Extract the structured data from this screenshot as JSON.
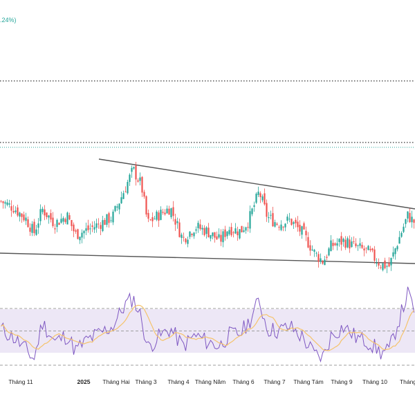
{
  "header": {
    "change_text": ".24%)"
  },
  "colors": {
    "up": "#26a69a",
    "down": "#ef5350",
    "trendline": "#555555",
    "dotted_dark": "#333333",
    "dotted_teal": "#26a69a",
    "rsi_line": "#7e57c2",
    "rsi_ma": "#f5c36b",
    "rsi_band": "#ede7f6",
    "rsi_bound": "#9e9e9e",
    "axis_text": "#222222",
    "header_text": "#26a69a"
  },
  "chart_data": {
    "type": "candlestick",
    "x_axis": {
      "tick_labels": [
        "Tháng 11",
        "2025",
        "Tháng Hai",
        "Tháng 3",
        "Tháng 4",
        "Tháng Năm",
        "Tháng 6",
        "Tháng 7",
        "Tháng Tám",
        "Tháng 9",
        "Tháng 10",
        "Tháng"
      ]
    },
    "price": {
      "approx_range": [
        0,
        100
      ],
      "guides": [
        {
          "style": "dotted",
          "color": "dark",
          "level": 98
        },
        {
          "style": "dotted",
          "color": "teal",
          "level": 72
        }
      ],
      "trendlines": [
        {
          "name": "upper",
          "from": {
            "month": "Tháng Hai",
            "level": 62
          },
          "to": {
            "month": "Tháng",
            "level": 39
          }
        },
        {
          "name": "lower",
          "from": {
            "month": "start",
            "level": 7
          },
          "to": {
            "month": "Tháng",
            "level": 0
          }
        }
      ],
      "close_path": [
        {
          "t": 0,
          "v": 38
        },
        {
          "t": 0.03,
          "v": 34
        },
        {
          "t": 0.06,
          "v": 27
        },
        {
          "t": 0.08,
          "v": 18
        },
        {
          "t": 0.1,
          "v": 33
        },
        {
          "t": 0.13,
          "v": 24
        },
        {
          "t": 0.16,
          "v": 29
        },
        {
          "t": 0.18,
          "v": 17
        },
        {
          "t": 0.21,
          "v": 20
        },
        {
          "t": 0.24,
          "v": 24
        },
        {
          "t": 0.27,
          "v": 28
        },
        {
          "t": 0.3,
          "v": 46
        },
        {
          "t": 0.32,
          "v": 58
        },
        {
          "t": 0.34,
          "v": 48
        },
        {
          "t": 0.355,
          "v": 24
        },
        {
          "t": 0.38,
          "v": 29
        },
        {
          "t": 0.41,
          "v": 34
        },
        {
          "t": 0.44,
          "v": 14
        },
        {
          "t": 0.47,
          "v": 22
        },
        {
          "t": 0.5,
          "v": 19
        },
        {
          "t": 0.53,
          "v": 13
        },
        {
          "t": 0.55,
          "v": 21
        },
        {
          "t": 0.58,
          "v": 19
        },
        {
          "t": 0.6,
          "v": 26
        },
        {
          "t": 0.625,
          "v": 44
        },
        {
          "t": 0.645,
          "v": 28
        },
        {
          "t": 0.67,
          "v": 24
        },
        {
          "t": 0.7,
          "v": 26
        },
        {
          "t": 0.73,
          "v": 18
        },
        {
          "t": 0.76,
          "v": 5
        },
        {
          "t": 0.78,
          "v": 0
        },
        {
          "t": 0.8,
          "v": 10
        },
        {
          "t": 0.83,
          "v": 13
        },
        {
          "t": 0.86,
          "v": 9
        },
        {
          "t": 0.89,
          "v": 6
        },
        {
          "t": 0.92,
          "v": -2
        },
        {
          "t": 0.94,
          "v": -3
        },
        {
          "t": 0.96,
          "v": 12
        },
        {
          "t": 0.985,
          "v": 29
        },
        {
          "t": 1.0,
          "v": 25
        }
      ]
    },
    "rsi": {
      "bands": [
        30,
        50,
        70
      ],
      "line_path": [
        {
          "t": 0,
          "v": 52
        },
        {
          "t": 0.03,
          "v": 44
        },
        {
          "t": 0.06,
          "v": 33
        },
        {
          "t": 0.08,
          "v": 24
        },
        {
          "t": 0.1,
          "v": 58
        },
        {
          "t": 0.13,
          "v": 40
        },
        {
          "t": 0.16,
          "v": 46
        },
        {
          "t": 0.18,
          "v": 32
        },
        {
          "t": 0.21,
          "v": 42
        },
        {
          "t": 0.24,
          "v": 48
        },
        {
          "t": 0.27,
          "v": 54
        },
        {
          "t": 0.3,
          "v": 74
        },
        {
          "t": 0.32,
          "v": 80
        },
        {
          "t": 0.34,
          "v": 62
        },
        {
          "t": 0.355,
          "v": 34
        },
        {
          "t": 0.38,
          "v": 44
        },
        {
          "t": 0.41,
          "v": 52
        },
        {
          "t": 0.44,
          "v": 36
        },
        {
          "t": 0.47,
          "v": 46
        },
        {
          "t": 0.5,
          "v": 40
        },
        {
          "t": 0.53,
          "v": 36
        },
        {
          "t": 0.55,
          "v": 46
        },
        {
          "t": 0.58,
          "v": 48
        },
        {
          "t": 0.6,
          "v": 58
        },
        {
          "t": 0.625,
          "v": 78
        },
        {
          "t": 0.645,
          "v": 52
        },
        {
          "t": 0.67,
          "v": 50
        },
        {
          "t": 0.7,
          "v": 54
        },
        {
          "t": 0.73,
          "v": 44
        },
        {
          "t": 0.76,
          "v": 28
        },
        {
          "t": 0.78,
          "v": 26
        },
        {
          "t": 0.8,
          "v": 46
        },
        {
          "t": 0.83,
          "v": 54
        },
        {
          "t": 0.86,
          "v": 44
        },
        {
          "t": 0.89,
          "v": 40
        },
        {
          "t": 0.92,
          "v": 30
        },
        {
          "t": 0.94,
          "v": 32
        },
        {
          "t": 0.96,
          "v": 56
        },
        {
          "t": 0.985,
          "v": 84
        },
        {
          "t": 1.0,
          "v": 70
        }
      ]
    }
  }
}
